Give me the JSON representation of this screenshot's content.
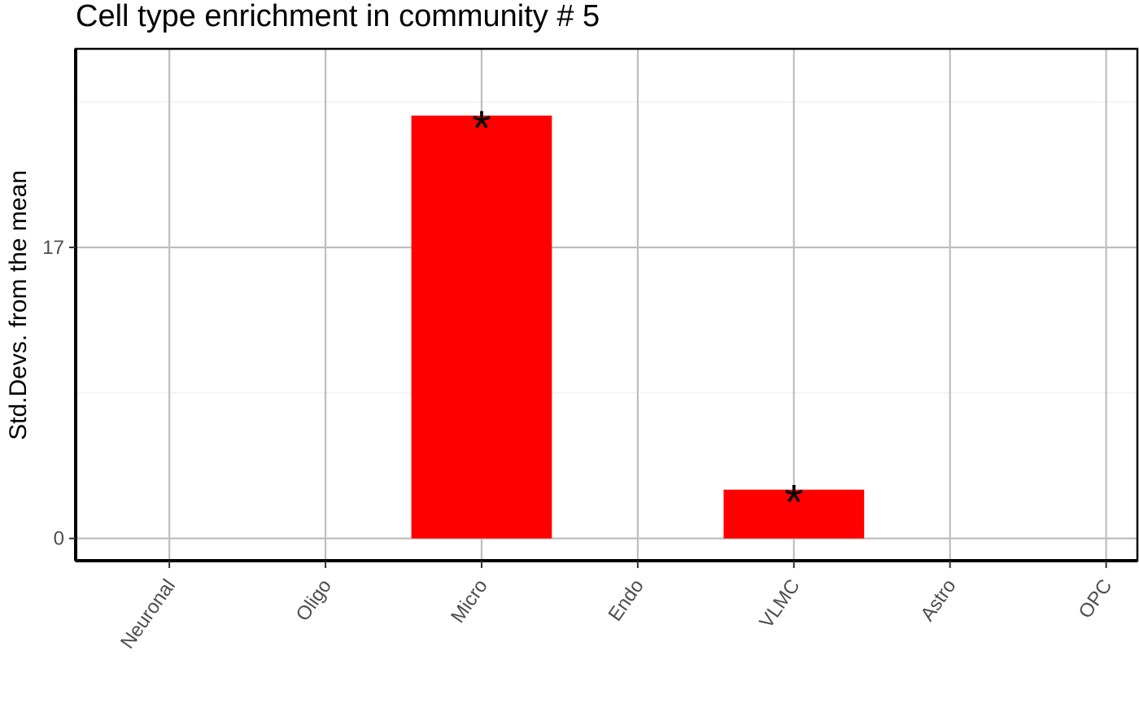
{
  "chart_data": {
    "type": "bar",
    "title": "Cell type enrichment in community # 5",
    "xlabel": "",
    "ylabel": "Std.Devs. from the mean",
    "categories": [
      "Neuronal",
      "Oligo",
      "Micro",
      "Endo",
      "VLMC",
      "Astro",
      "OPC"
    ],
    "values": [
      0,
      0,
      24.7,
      0,
      2.85,
      0,
      0
    ],
    "significance": [
      "",
      "",
      "*",
      "",
      "*",
      "",
      ""
    ],
    "yticks": [
      0,
      17
    ],
    "ylim": [
      -1.3,
      28.6
    ],
    "bar_color": "#ff0000",
    "grid": true
  }
}
